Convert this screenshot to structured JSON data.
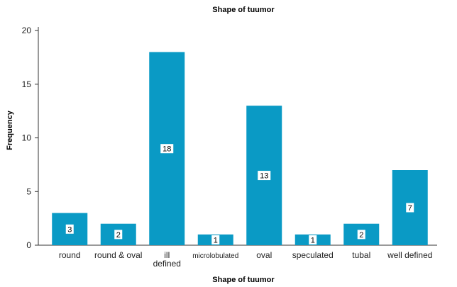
{
  "chart_data": {
    "type": "bar",
    "title": "Shape of tuumor",
    "xlabel": "Shape of tuumor",
    "ylabel": "Frequency",
    "categories": [
      "round",
      "round & oval",
      "ill\ndefined",
      "microlobulated",
      "oval",
      "speculated",
      "tubal",
      "well defined"
    ],
    "values": [
      3,
      2,
      18,
      1,
      13,
      1,
      2,
      7
    ],
    "ylim": [
      0,
      21
    ],
    "yticks": [
      0,
      5,
      10,
      15,
      20
    ],
    "bar_color": "#0a9ac5",
    "grid": false,
    "legend": "none"
  }
}
